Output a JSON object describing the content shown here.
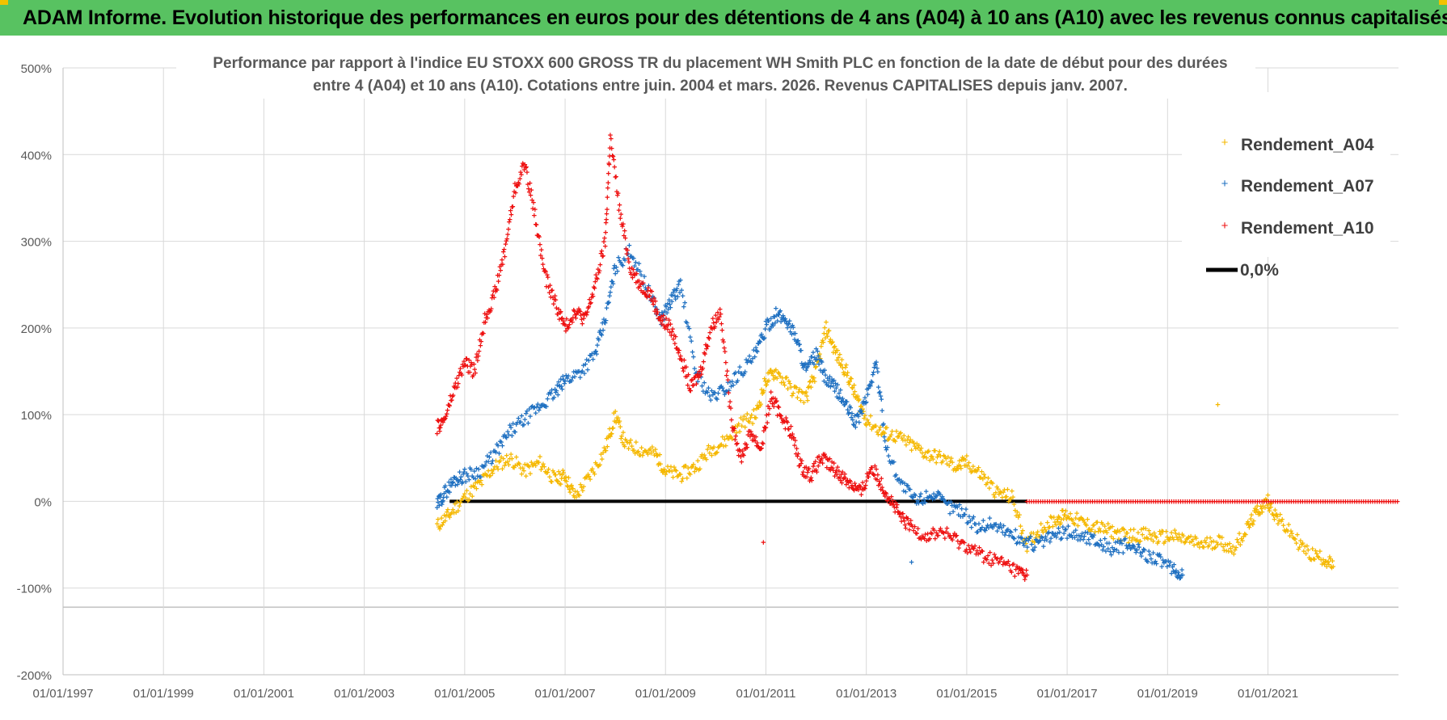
{
  "header": {
    "title": "ADAM Informe. Evolution historique des performances en euros pour des détentions de 4 ans (A04) à 10 ans (A10) avec les revenus connus capitalisés"
  },
  "colors": {
    "banner": "#58c261",
    "A04": "#f5b800",
    "A07": "#1f70c1",
    "A10": "#ee1111",
    "zero": "#000000",
    "grid": "#d9d9d9"
  },
  "chart_data": {
    "type": "scatter",
    "title_line1": "Performance par rapport à l'indice EU STOXX 600 GROSS TR  du placement WH Smith PLC en fonction de la date de début pour des durées",
    "title_line2": "entre 4 (A04) et 10 ans (A10). Cotations entre juin. 2004 et mars. 2026. Revenus CAPITALISES depuis janv. 2007.",
    "xlim": [
      1997.0,
      2023.6
    ],
    "ylim": [
      -200,
      500
    ],
    "y_ticks": [
      500,
      400,
      300,
      200,
      100,
      0,
      -100,
      -200
    ],
    "y_tick_labels": [
      "500%",
      "400%",
      "300%",
      "200%",
      "100%",
      "0%",
      "-100%",
      "-200%"
    ],
    "x_ticks": [
      1997,
      1999,
      2001,
      2003,
      2005,
      2007,
      2009,
      2011,
      2013,
      2015,
      2017,
      2019,
      2021
    ],
    "x_tick_labels": [
      "01/01/1997",
      "01/01/1999",
      "01/01/2001",
      "01/01/2003",
      "01/01/2005",
      "01/01/2007",
      "01/01/2009",
      "01/01/2011",
      "01/01/2013",
      "01/01/2015",
      "01/01/2017",
      "01/01/2019",
      "01/01/2021"
    ],
    "series": [
      {
        "name": "Rendement_A04",
        "color": "#f5b800",
        "x": [
          2004.45,
          2004.7,
          2005.0,
          2005.3,
          2005.6,
          2005.9,
          2006.2,
          2006.5,
          2006.8,
          2007.0,
          2007.2,
          2007.5,
          2007.8,
          2008.0,
          2008.2,
          2008.5,
          2008.8,
          2009.0,
          2009.3,
          2009.6,
          2009.9,
          2010.2,
          2010.5,
          2010.8,
          2011.0,
          2011.2,
          2011.5,
          2011.8,
          2012.0,
          2012.2,
          2012.4,
          2012.6,
          2012.8,
          2013.0,
          2013.3,
          2013.6,
          2013.9,
          2014.2,
          2014.5,
          2014.8,
          2015.0,
          2015.3,
          2015.6,
          2015.9,
          2016.2,
          2016.5,
          2016.8,
          2017.0,
          2017.3,
          2017.6,
          2017.9,
          2018.2,
          2018.5,
          2018.8,
          2019.1,
          2019.4,
          2019.7,
          2020.0,
          2020.3,
          2020.6,
          2020.8,
          2021.0,
          2021.2,
          2021.5,
          2021.8,
          2022.1,
          2022.3
        ],
        "y": [
          -28,
          -15,
          5,
          20,
          40,
          50,
          35,
          45,
          25,
          30,
          5,
          30,
          60,
          100,
          65,
          60,
          55,
          35,
          30,
          40,
          60,
          70,
          90,
          100,
          140,
          150,
          130,
          120,
          150,
          200,
          170,
          150,
          120,
          95,
          80,
          75,
          65,
          55,
          50,
          40,
          45,
          30,
          10,
          5,
          -50,
          -30,
          -20,
          -15,
          -25,
          -30,
          -35,
          -40,
          -38,
          -42,
          -40,
          -45,
          -50,
          -45,
          -55,
          -30,
          -10,
          0,
          -20,
          -40,
          -60,
          -65,
          -75
        ]
      },
      {
        "name": "Rendement_A07",
        "color": "#1f70c1",
        "x": [
          2004.45,
          2004.6,
          2004.8,
          2005.0,
          2005.3,
          2005.6,
          2005.9,
          2006.2,
          2006.5,
          2006.8,
          2007.0,
          2007.3,
          2007.6,
          2007.8,
          2008.0,
          2008.3,
          2008.6,
          2008.9,
          2009.1,
          2009.3,
          2009.6,
          2009.9,
          2010.2,
          2010.5,
          2010.8,
          2011.0,
          2011.2,
          2011.4,
          2011.6,
          2011.8,
          2012.0,
          2012.2,
          2012.4,
          2012.6,
          2012.8,
          2013.0,
          2013.2,
          2013.4,
          2013.7,
          2014.0,
          2014.3,
          2014.6,
          2014.9,
          2015.2,
          2015.5,
          2015.8,
          2016.1,
          2016.4,
          2016.7,
          2017.0,
          2017.3,
          2017.6,
          2017.9,
          2018.2,
          2018.5,
          2018.8,
          2019.1,
          2019.3
        ],
        "y": [
          -5,
          10,
          25,
          30,
          35,
          55,
          80,
          95,
          110,
          125,
          140,
          150,
          170,
          210,
          270,
          290,
          250,
          210,
          230,
          250,
          150,
          120,
          130,
          150,
          170,
          200,
          215,
          210,
          190,
          150,
          170,
          140,
          130,
          110,
          90,
          120,
          160,
          60,
          20,
          0,
          10,
          -5,
          -10,
          -30,
          -25,
          -35,
          -45,
          -50,
          -40,
          -35,
          -40,
          -45,
          -55,
          -50,
          -60,
          -65,
          -80,
          -85
        ]
      },
      {
        "name": "Rendement_A10",
        "color": "#ee1111",
        "x": [
          2004.45,
          2004.6,
          2004.8,
          2005.0,
          2005.2,
          2005.4,
          2005.6,
          2005.8,
          2006.0,
          2006.2,
          2006.4,
          2006.6,
          2006.8,
          2007.0,
          2007.2,
          2007.4,
          2007.6,
          2007.8,
          2007.9,
          2008.1,
          2008.3,
          2008.5,
          2008.7,
          2008.9,
          2009.1,
          2009.3,
          2009.5,
          2009.7,
          2009.9,
          2010.1,
          2010.3,
          2010.5,
          2010.7,
          2010.9,
          2011.1,
          2011.3,
          2011.5,
          2011.7,
          2011.9,
          2012.1,
          2012.3,
          2012.5,
          2012.7,
          2012.9,
          2013.1,
          2013.3,
          2013.5,
          2013.7,
          2013.9,
          2014.2,
          2014.5,
          2014.8,
          2015.1,
          2015.4,
          2015.7,
          2016.0,
          2016.2
        ],
        "y": [
          85,
          95,
          130,
          160,
          150,
          210,
          240,
          290,
          360,
          390,
          330,
          260,
          230,
          200,
          220,
          210,
          250,
          300,
          420,
          330,
          270,
          250,
          240,
          210,
          200,
          170,
          130,
          150,
          200,
          220,
          100,
          50,
          80,
          60,
          120,
          100,
          80,
          40,
          30,
          50,
          40,
          30,
          20,
          10,
          40,
          20,
          0,
          -20,
          -30,
          -40,
          -35,
          -45,
          -55,
          -65,
          -70,
          -80,
          -85
        ]
      },
      {
        "name": "0,0%",
        "color": "#000000",
        "x": [
          2004.7,
          2016.2
        ],
        "y": [
          0,
          0
        ]
      }
    ],
    "red_zero_flat": {
      "x": [
        2016.2,
        2023.6
      ],
      "y": 0
    },
    "outliers": [
      {
        "series": "Rendement_A04",
        "x": 2020.0,
        "y": 112
      },
      {
        "series": "Rendement_A10",
        "x": 2010.95,
        "y": -47
      },
      {
        "series": "Rendement_A07",
        "x": 2013.9,
        "y": -70
      }
    ],
    "legend": {
      "position": "top-right",
      "entries": [
        "Rendement_A04",
        "Rendement_A07",
        "Rendement_A10",
        "0,0%"
      ]
    },
    "grid": true
  }
}
